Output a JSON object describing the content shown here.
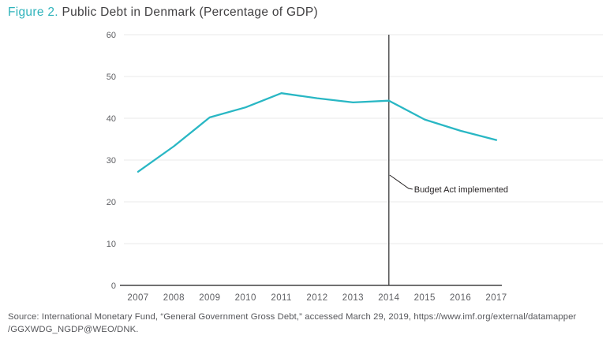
{
  "title": {
    "figure_label": "Figure 2.",
    "text": " Public Debt in Denmark (Percentage of GDP)"
  },
  "source": {
    "line1": "Source: International Monetary Fund, “General Government Gross Debt,” accessed March 29, 2019, https://www.imf.org/external/datamapper",
    "line2": "/GGXWDG_NGDP@WEO/DNK."
  },
  "colors": {
    "accent_teal": "#2fb3bb",
    "line_teal": "#29b7c4",
    "title_text": "#414042",
    "axis_text": "#5f6064",
    "grid": "#e8e8e8",
    "axis_line": "#414042",
    "marker_line": "#48484a",
    "annotation_text": "#231f20",
    "source_text": "#55565a"
  },
  "chart_data": {
    "type": "line",
    "title": "Figure 2. Public Debt in Denmark (Percentage of GDP)",
    "x": [
      2007,
      2008,
      2009,
      2010,
      2011,
      2012,
      2013,
      2014,
      2015,
      2016,
      2017
    ],
    "series": [
      {
        "name": "General government gross debt (% of GDP)",
        "values": [
          27.2,
          33.3,
          40.2,
          42.6,
          46.0,
          44.8,
          43.8,
          44.2,
          39.7,
          37.0,
          34.8
        ]
      }
    ],
    "xlabel": "",
    "ylabel": "",
    "ylim": [
      0,
      60
    ],
    "ytick_interval": 10,
    "grid": true,
    "legend": false,
    "annotation": {
      "label": "Budget Act implemented",
      "at_x": 2014,
      "type": "vertical-line"
    }
  }
}
